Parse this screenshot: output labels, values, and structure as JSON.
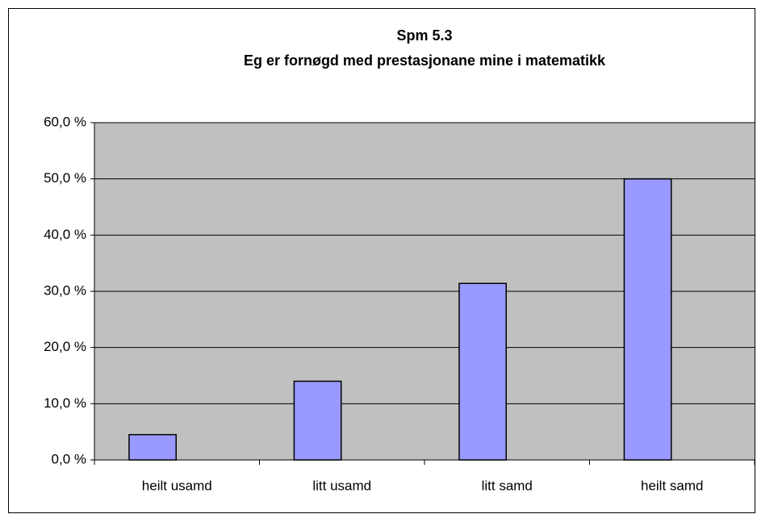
{
  "chart_data": {
    "type": "bar",
    "title": "Spm 5.3",
    "subtitle": "Eg er fornøgd med prestasjonane mine i matematikk",
    "categories": [
      "heilt usamd",
      "litt usamd",
      "litt samd",
      "heilt samd"
    ],
    "values": [
      4.5,
      14.0,
      31.4,
      50.0
    ],
    "color": "#9999ff",
    "ylim": [
      0,
      60
    ],
    "yticks": [
      {
        "value": 0,
        "label": "0,0 %"
      },
      {
        "value": 10,
        "label": "10,0 %"
      },
      {
        "value": 20,
        "label": "20,0 %"
      },
      {
        "value": 30,
        "label": "30,0 %"
      },
      {
        "value": 40,
        "label": "40,0 %"
      },
      {
        "value": 50,
        "label": "50,0 %"
      },
      {
        "value": 60,
        "label": "60,0 %"
      }
    ],
    "grid": true
  }
}
